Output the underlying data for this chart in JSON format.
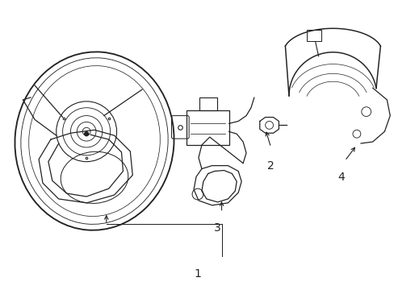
{
  "bg_color": "#ffffff",
  "line_color": "#222222",
  "lw": 0.9,
  "label_fontsize": 10,
  "figsize": [
    4.89,
    3.6
  ],
  "dpi": 100
}
